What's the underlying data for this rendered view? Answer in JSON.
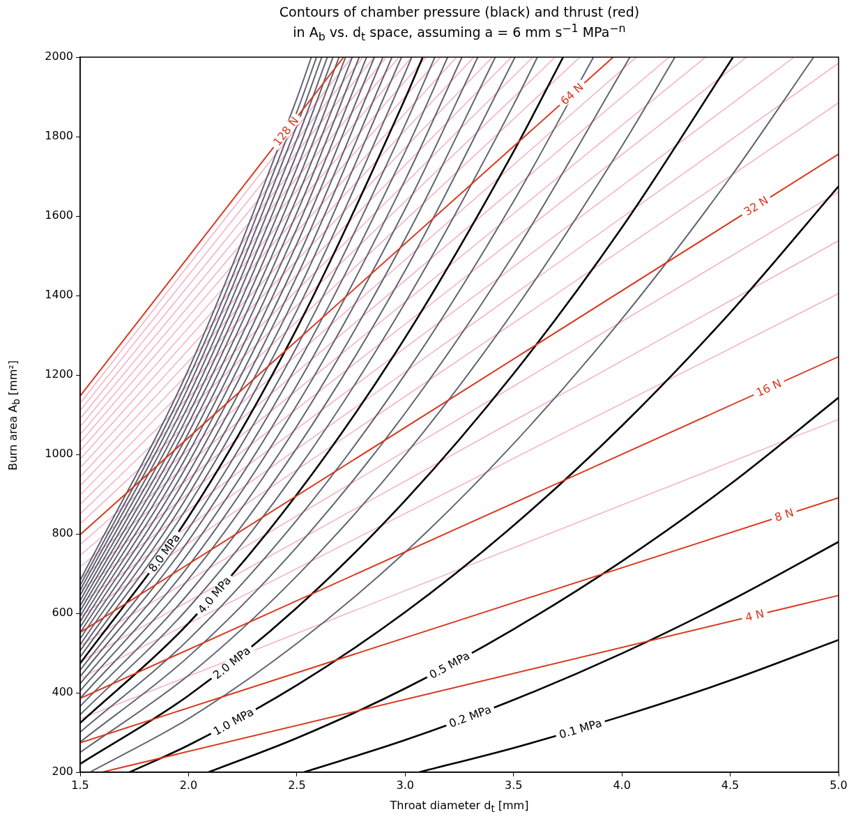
{
  "chart_data": {
    "type": "line",
    "title": "Contours of chamber pressure (black) and thrust (red)\nin A$_{b}$ vs. d$_{t}$ space, assuming a = 6 mm s$^{−1}$ MPa$^{−n}$",
    "xlabel": "Throat diameter d$_{t}$ [mm]",
    "ylabel": "Burn area A$_{b}$ [mm²]",
    "xlim": [
      1.5,
      5
    ],
    "ylim": [
      200,
      2000
    ],
    "xticks": [
      {
        "value": 1.5,
        "label": "1.5"
      },
      {
        "value": 2,
        "label": "2.0"
      },
      {
        "value": 2.5,
        "label": "2.5"
      },
      {
        "value": 3,
        "label": "3.0"
      },
      {
        "value": 3.5,
        "label": "3.5"
      },
      {
        "value": 4,
        "label": "4.0"
      },
      {
        "value": 4.5,
        "label": "4.5"
      },
      {
        "value": 5,
        "label": "5.0"
      }
    ],
    "yticks": [
      200,
      400,
      600,
      800,
      1000,
      1200,
      1400,
      1600,
      1800,
      2000
    ],
    "series": [
      {
        "color": "#f7a8c0",
        "x": [
          1.5,
          5
        ],
        "values": [
          334,
          1088
        ]
      },
      {
        "color": "#f7a8c0",
        "x": [
          1.5,
          5
        ],
        "values": [
          436,
          1405
        ]
      },
      {
        "color": "#f7a8c0",
        "x": [
          1.5,
          5
        ],
        "values": [
          479,
          1538
        ]
      },
      {
        "color": "#f7a8c0",
        "x": [
          1.5,
          5
        ],
        "values": [
          519,
          1661
        ]
      },
      {
        "color": "#f7a8c0",
        "x": [
          1.5,
          5
        ],
        "values": [
          592,
          1885
        ]
      },
      {
        "color": "#f7a8c0",
        "x": [
          1.5,
          5
        ],
        "values": [
          625,
          1985
        ]
      },
      {
        "color": "#f7a8c0",
        "x": [
          1.5,
          4.795
        ],
        "values": [
          657,
          2000
        ]
      },
      {
        "color": "#f7a8c0",
        "x": [
          1.5,
          4.575
        ],
        "values": [
          688,
          2000
        ]
      },
      {
        "color": "#f7a8c0",
        "x": [
          1.5,
          4.386
        ],
        "values": [
          717,
          2000
        ]
      },
      {
        "color": "#f7a8c0",
        "x": [
          1.5,
          4.218
        ],
        "values": [
          746,
          2000
        ]
      },
      {
        "color": "#f7a8c0",
        "x": [
          1.5,
          4.067
        ],
        "values": [
          773,
          2000
        ]
      },
      {
        "color": "#f7a8c0",
        "x": [
          1.5,
          3.806
        ],
        "values": [
          825,
          2000
        ]
      },
      {
        "color": "#f7a8c0",
        "x": [
          1.5,
          3.692
        ],
        "values": [
          850,
          2000
        ]
      },
      {
        "color": "#f7a8c0",
        "x": [
          1.5,
          3.589
        ],
        "values": [
          874,
          2000
        ]
      },
      {
        "color": "#f7a8c0",
        "x": [
          1.5,
          3.49
        ],
        "values": [
          898,
          2000
        ]
      },
      {
        "color": "#f7a8c0",
        "x": [
          1.5,
          3.402
        ],
        "values": [
          921,
          2000
        ]
      },
      {
        "color": "#f7a8c0",
        "x": [
          1.5,
          3.317
        ],
        "values": [
          944,
          2000
        ]
      },
      {
        "color": "#f7a8c0",
        "x": [
          1.5,
          3.237
        ],
        "values": [
          966,
          2000
        ]
      },
      {
        "color": "#f7a8c0",
        "x": [
          1.5,
          3.163
        ],
        "values": [
          988,
          2000
        ]
      },
      {
        "color": "#f7a8c0",
        "x": [
          1.5,
          3.097
        ],
        "values": [
          1009,
          2000
        ]
      },
      {
        "color": "#f7a8c0",
        "x": [
          1.5,
          3.03
        ],
        "values": [
          1030,
          2000
        ]
      },
      {
        "color": "#f7a8c0",
        "x": [
          1.5,
          2.971
        ],
        "values": [
          1050,
          2000
        ]
      },
      {
        "color": "#f7a8c0",
        "x": [
          1.5,
          2.913
        ],
        "values": [
          1070,
          2000
        ]
      },
      {
        "color": "#f7a8c0",
        "x": [
          1.5,
          2.857
        ],
        "values": [
          1090,
          2000
        ]
      },
      {
        "color": "#f7a8c0",
        "x": [
          1.5,
          2.805
        ],
        "values": [
          1110,
          2000
        ]
      },
      {
        "color": "#f7a8c0",
        "x": [
          1.5,
          2.754
        ],
        "values": [
          1129,
          2000
        ]
      },
      {
        "color": "#000000",
        "x": [
          3.064,
          3.5,
          4,
          4.5,
          5
        ],
        "values": [
          200,
          261,
          341,
          431,
          533
        ]
      },
      {
        "color": "#000000",
        "x": [
          2.532,
          3,
          3.5,
          4,
          4.5,
          5
        ],
        "values": [
          200,
          281,
          382,
          499,
          632,
          780
        ]
      },
      {
        "color": "#000000",
        "x": [
          2.092,
          2.5,
          3,
          3.5,
          4,
          4.5,
          5
        ],
        "values": [
          200,
          286,
          411,
          560,
          731,
          925,
          1143
        ]
      },
      {
        "color": "#000000",
        "x": [
          1.728,
          2,
          2.5,
          3,
          3.5,
          4,
          4.5,
          5
        ],
        "values": [
          200,
          268,
          419,
          603,
          821,
          1072,
          1357,
          1675
        ]
      },
      {
        "color": "#5f6272",
        "x": [
          1.545,
          2,
          2.5,
          3,
          3.5,
          4,
          4.5,
          4.885
        ],
        "values": [
          200,
          335,
          524,
          754,
          1027,
          1341,
          1697,
          2000
        ]
      },
      {
        "color": "#000000",
        "x": [
          1.5,
          2,
          2.5,
          3,
          3.5,
          4,
          4.513
        ],
        "values": [
          221,
          393,
          614,
          884,
          1203,
          1571,
          2000
        ]
      },
      {
        "color": "#5f6272",
        "x": [
          1.5,
          2,
          2.5,
          3,
          3.5,
          4,
          4.245
        ],
        "values": [
          250,
          444,
          694,
          999,
          1360,
          1776,
          2000
        ]
      },
      {
        "color": "#5f6272",
        "x": [
          1.5,
          2,
          2.5,
          3,
          3.5,
          4.037
        ],
        "values": [
          276,
          491,
          767,
          1104,
          1503,
          2000
        ]
      },
      {
        "color": "#5f6272",
        "x": [
          1.5,
          2,
          2.5,
          3,
          3.5,
          3.869
        ],
        "values": [
          301,
          534,
          835,
          1202,
          1637,
          2000
        ]
      },
      {
        "color": "#000000",
        "x": [
          1.5,
          2,
          2.5,
          3,
          3.5,
          3.729
        ],
        "values": [
          324,
          575,
          899,
          1294,
          1762,
          2000
        ]
      },
      {
        "color": "#5f6272",
        "x": [
          1.5,
          2,
          2.5,
          3,
          3.5,
          3.61
        ],
        "values": [
          345,
          614,
          959,
          1382,
          1880,
          2000
        ]
      },
      {
        "color": "#5f6272",
        "x": [
          1.5,
          2,
          2.5,
          3,
          3.507
        ],
        "values": [
          366,
          650,
          1016,
          1463,
          2000
        ]
      },
      {
        "color": "#5f6272",
        "x": [
          1.5,
          2,
          2.5,
          3,
          3.416
        ],
        "values": [
          386,
          686,
          1071,
          1543,
          2000
        ]
      },
      {
        "color": "#5f6272",
        "x": [
          1.5,
          2,
          2.5,
          3,
          3.335
        ],
        "values": [
          405,
          719,
          1124,
          1618,
          2000
        ]
      },
      {
        "color": "#5f6272",
        "x": [
          1.5,
          2,
          2.5,
          3,
          3.262
        ],
        "values": [
          423,
          752,
          1174,
          1691,
          2000
        ]
      },
      {
        "color": "#5f6272",
        "x": [
          1.5,
          2,
          2.5,
          3,
          3.196
        ],
        "values": [
          441,
          783,
          1224,
          1762,
          2000
        ]
      },
      {
        "color": "#5f6272",
        "x": [
          1.5,
          2,
          2.5,
          3,
          3.137
        ],
        "values": [
          457,
          813,
          1271,
          1830,
          2000
        ]
      },
      {
        "color": "#000000",
        "x": [
          1.5,
          2,
          2.5,
          3,
          3.081
        ],
        "values": [
          474,
          843,
          1317,
          1896,
          2000
        ]
      },
      {
        "color": "#5f6272",
        "x": [
          1.5,
          2,
          2.5,
          3,
          3.03
        ],
        "values": [
          490,
          872,
          1362,
          1961,
          2000
        ]
      },
      {
        "color": "#5f6272",
        "x": [
          1.5,
          2,
          2.5,
          2.983
        ],
        "values": [
          506,
          899,
          1405,
          2000
        ]
      },
      {
        "color": "#5f6272",
        "x": [
          1.5,
          2,
          2.5,
          2.939
        ],
        "values": [
          521,
          926,
          1448,
          2000
        ]
      },
      {
        "color": "#5f6272",
        "x": [
          1.5,
          2,
          2.5,
          2.897
        ],
        "values": [
          536,
          953,
          1489,
          2000
        ]
      },
      {
        "color": "#5f6272",
        "x": [
          1.5,
          2,
          2.5,
          2.858
        ],
        "values": [
          551,
          979,
          1530,
          2000
        ]
      },
      {
        "color": "#5f6272",
        "x": [
          1.5,
          2,
          2.5,
          2.822
        ],
        "values": [
          565,
          1004,
          1569,
          2000
        ]
      },
      {
        "color": "#5f6272",
        "x": [
          1.5,
          2,
          2.5,
          2.788
        ],
        "values": [
          579,
          1029,
          1608,
          2000
        ]
      },
      {
        "color": "#5f6272",
        "x": [
          1.5,
          2,
          2.5,
          2.756
        ],
        "values": [
          593,
          1054,
          1646,
          2000
        ]
      },
      {
        "color": "#5f6272",
        "x": [
          1.5,
          2,
          2.5,
          2.725
        ],
        "values": [
          606,
          1078,
          1684,
          2000
        ]
      },
      {
        "color": "#5f6272",
        "x": [
          1.5,
          2,
          2.5,
          2.695
        ],
        "values": [
          619,
          1101,
          1721,
          2000
        ]
      },
      {
        "color": "#5f6272",
        "x": [
          1.5,
          2,
          2.5,
          2.667
        ],
        "values": [
          632,
          1124,
          1757,
          2000
        ]
      },
      {
        "color": "#5f6272",
        "x": [
          1.5,
          2,
          2.5,
          2.641
        ],
        "values": [
          645,
          1147,
          1793,
          2000
        ]
      },
      {
        "color": "#5f6272",
        "x": [
          1.5,
          2,
          2.5,
          2.615
        ],
        "values": [
          658,
          1170,
          1828,
          2000
        ]
      },
      {
        "color": "#5f6272",
        "x": [
          1.5,
          2,
          2.5,
          2.591
        ],
        "values": [
          670,
          1192,
          1862,
          2000
        ]
      },
      {
        "color": "#5f6272",
        "x": [
          1.5,
          2,
          2.5,
          2.567
        ],
        "values": [
          683,
          1214,
          1896,
          2000
        ]
      },
      {
        "color": "#d9361c",
        "x": [
          1.6,
          5
        ],
        "values": [
          200,
          645
        ]
      },
      {
        "color": "#d9361c",
        "x": [
          1.5,
          5
        ],
        "values": [
          274,
          891
        ]
      },
      {
        "color": "#d9361c",
        "x": [
          1.5,
          5
        ],
        "values": [
          386,
          1246
        ]
      },
      {
        "color": "#d9361c",
        "x": [
          1.5,
          5
        ],
        "values": [
          552,
          1756
        ]
      },
      {
        "color": "#d9361c",
        "x": [
          1.5,
          3.96
        ],
        "values": [
          798,
          2000
        ]
      },
      {
        "color": "#d9361c",
        "x": [
          1.5,
          2.716
        ],
        "values": [
          1147,
          2000
        ]
      }
    ],
    "annotations": [
      {
        "text": "128 N",
        "x": 2.45,
        "y": 1813
      },
      {
        "text": "64 N",
        "x": 3.77,
        "y": 1907
      },
      {
        "text": "32 N",
        "x": 4.62,
        "y": 1625
      },
      {
        "text": "16 N",
        "x": 4.678,
        "y": 1167
      },
      {
        "text": "8 N",
        "x": 4.749,
        "y": 847
      },
      {
        "text": "4 N",
        "x": 4.613,
        "y": 594
      },
      {
        "text": "0.1 MPa",
        "x": 3.809,
        "y": 309
      },
      {
        "text": "0.2 MPa",
        "x": 3.3,
        "y": 340
      },
      {
        "text": "0.5 MPa",
        "x": 3.205,
        "y": 469
      },
      {
        "text": "1.0 MPa",
        "x": 2.208,
        "y": 327
      },
      {
        "text": "2.0 MPa",
        "x": 2.2,
        "y": 475
      },
      {
        "text": "4.0 MPa",
        "x": 2.12,
        "y": 646
      },
      {
        "text": "8.0 MPa",
        "x": 1.889,
        "y": 752
      }
    ]
  }
}
